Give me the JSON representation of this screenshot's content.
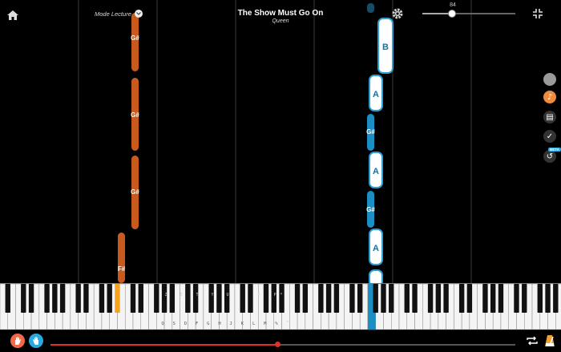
{
  "header": {
    "mode_label": "Mode Lecture",
    "song_title": "The Show Must Go On",
    "song_artist": "Queen",
    "speed_value": "84"
  },
  "speed": {
    "fraction": 0.32
  },
  "colors": {
    "orange": "#c85a1e",
    "blue": "#1b8fc4",
    "white_note_border": "#2e9fd6",
    "progress": "#e0302a",
    "left_hand": "#ee6a4a",
    "right_hand": "#2aa8e0",
    "keyboard_line": "#ff3c3c"
  },
  "side_tools": [
    {
      "name": "gray-toggle-icon",
      "color": "#9a9a9a"
    },
    {
      "name": "note-icon",
      "color": "#f08a3c"
    },
    {
      "name": "sheet-icon",
      "color": "#333"
    },
    {
      "name": "check-icon",
      "color": "#333"
    },
    {
      "name": "undo-icon",
      "color": "#333"
    }
  ],
  "beta_label": "BETA",
  "notes_track": [
    {
      "label": "G#",
      "color": "orange",
      "hand": "left"
    },
    {
      "label": "G#",
      "color": "orange",
      "hand": "left"
    },
    {
      "label": "G#",
      "color": "orange",
      "hand": "left"
    },
    {
      "label": "F#",
      "color": "orange",
      "hand": "left"
    },
    {
      "label": "B",
      "color": "white",
      "hand": "right"
    },
    {
      "label": "A",
      "color": "white",
      "hand": "right"
    },
    {
      "label": "G#",
      "color": "blue",
      "hand": "right"
    },
    {
      "label": "A",
      "color": "white",
      "hand": "right"
    },
    {
      "label": "G#",
      "color": "blue",
      "hand": "right"
    },
    {
      "label": "A",
      "color": "white",
      "hand": "right"
    }
  ],
  "keyboard": {
    "black_key_hints": [
      "Z",
      "E",
      "T",
      "Y",
      "U",
      "O",
      "P",
      "*"
    ],
    "white_key_hints": [
      "Q",
      "S",
      "D",
      "F",
      "G",
      "H",
      "J",
      "K",
      "L",
      "M",
      "%",
      "`"
    ],
    "pressed_keys": [
      {
        "key": "F#",
        "hand": "left"
      },
      {
        "key": "A",
        "hand": "right"
      }
    ]
  },
  "playback": {
    "progress": 0.49
  },
  "icons": {
    "home": "home-icon",
    "settings": "gear-icon",
    "collapse": "collapse-icon",
    "loop": "loop-icon",
    "metronome": "metronome-icon",
    "left_hand": "left-hand-icon",
    "right_hand": "right-hand-icon"
  }
}
